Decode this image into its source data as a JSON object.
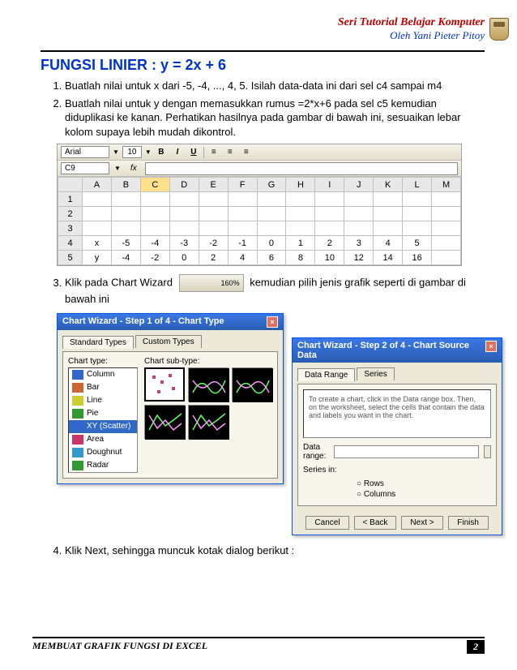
{
  "header": {
    "series": "Seri Tutorial Belajar Komputer",
    "author": "Oleh Yani Pieter Pitoy"
  },
  "title": "FUNGSI LINIER : y = 2x + 6",
  "steps": {
    "s1": "Buatlah nilai untuk x dari -5, -4, ..., 4, 5.  Isilah data-data ini dari sel c4 sampai m4",
    "s2": "Buatlah nilai untuk y dengan memasukkan rumus =2*x+6 pada sel c5 kemudian diduplikasi ke kanan. Perhatikan hasilnya pada gambar di bawah ini, sesuaikan lebar kolom supaya lebih mudah dikontrol.",
    "s3a": "Klik pada Chart Wizard",
    "s3b": "kemudian pilih jenis grafik seperti di gambar di bawah ini",
    "s4": "Klik Next, sehingga muncuk kotak dialog berikut :"
  },
  "excel": {
    "font_name": "Arial",
    "font_size": "10",
    "cell_ref": "C9",
    "columns": [
      "",
      "A",
      "B",
      "C",
      "D",
      "E",
      "F",
      "G",
      "H",
      "I",
      "J",
      "K",
      "L",
      "M"
    ],
    "rows": [
      {
        "n": "1",
        "cells": [
          "",
          "",
          "",
          "",
          "",
          "",
          "",
          "",
          "",
          "",
          "",
          "",
          "",
          ""
        ]
      },
      {
        "n": "2",
        "cells": [
          "",
          "",
          "",
          "",
          "",
          "",
          "",
          "",
          "",
          "",
          "",
          "",
          "",
          ""
        ]
      },
      {
        "n": "3",
        "cells": [
          "",
          "",
          "",
          "",
          "",
          "",
          "",
          "",
          "",
          "",
          "",
          "",
          "",
          ""
        ]
      },
      {
        "n": "4",
        "cells": [
          "",
          "x",
          "-5",
          "-4",
          "-3",
          "-2",
          "-1",
          "0",
          "1",
          "2",
          "3",
          "4",
          "5",
          ""
        ]
      },
      {
        "n": "5",
        "cells": [
          "",
          "y",
          "-4",
          "-2",
          "0",
          "2",
          "4",
          "6",
          "8",
          "10",
          "12",
          "14",
          "16",
          ""
        ]
      }
    ]
  },
  "wizard1": {
    "title": "Chart Wizard - Step 1 of 4 - Chart Type",
    "tab1": "Standard Types",
    "tab2": "Custom Types",
    "chart_type_label": "Chart type:",
    "sub_type_label": "Chart sub-type:",
    "types": [
      "Column",
      "Bar",
      "Line",
      "Pie",
      "XY (Scatter)",
      "Area",
      "Doughnut",
      "Radar"
    ],
    "selected_type": "XY (Scatter)"
  },
  "wizard2": {
    "title": "Chart Wizard - Step 2 of 4 - Chart Source Data",
    "tab1": "Data Range",
    "tab2": "Series",
    "hint": "To create a chart, click in the Data range box. Then, on the worksheet, select the cells that contain the data and labels you want in the chart.",
    "data_range_label": "Data range:",
    "series_in_label": "Series in:",
    "rows_label": "Rows",
    "cols_label": "Columns",
    "btn_cancel": "Cancel",
    "btn_back": "< Back",
    "btn_next": "Next >",
    "btn_finish": "Finish"
  },
  "footer": {
    "text": "MEMBUAT GRAFIK FUNGSI DI EXCEL",
    "page": "2"
  }
}
